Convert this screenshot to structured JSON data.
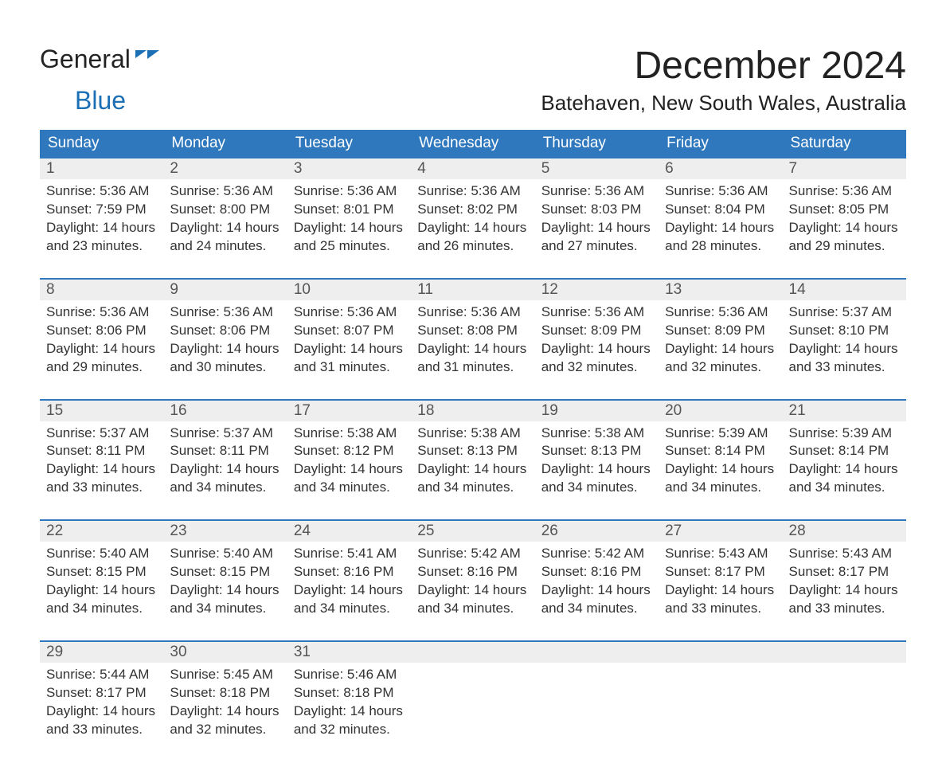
{
  "brand": {
    "word1": "General",
    "word2": "Blue"
  },
  "title": "December 2024",
  "location": "Batehaven, New South Wales, Australia",
  "colors": {
    "header_bg": "#2f78bd",
    "header_text": "#ffffff",
    "daynum_bg": "#eeeeee",
    "text": "#333333",
    "accent": "#1a6fb5",
    "page_bg": "#ffffff"
  },
  "dow": [
    "Sunday",
    "Monday",
    "Tuesday",
    "Wednesday",
    "Thursday",
    "Friday",
    "Saturday"
  ],
  "weeks": [
    [
      {
        "n": "1",
        "sr": "5:36 AM",
        "ss": "7:59 PM",
        "dl": "14 hours and 23 minutes."
      },
      {
        "n": "2",
        "sr": "5:36 AM",
        "ss": "8:00 PM",
        "dl": "14 hours and 24 minutes."
      },
      {
        "n": "3",
        "sr": "5:36 AM",
        "ss": "8:01 PM",
        "dl": "14 hours and 25 minutes."
      },
      {
        "n": "4",
        "sr": "5:36 AM",
        "ss": "8:02 PM",
        "dl": "14 hours and 26 minutes."
      },
      {
        "n": "5",
        "sr": "5:36 AM",
        "ss": "8:03 PM",
        "dl": "14 hours and 27 minutes."
      },
      {
        "n": "6",
        "sr": "5:36 AM",
        "ss": "8:04 PM",
        "dl": "14 hours and 28 minutes."
      },
      {
        "n": "7",
        "sr": "5:36 AM",
        "ss": "8:05 PM",
        "dl": "14 hours and 29 minutes."
      }
    ],
    [
      {
        "n": "8",
        "sr": "5:36 AM",
        "ss": "8:06 PM",
        "dl": "14 hours and 29 minutes."
      },
      {
        "n": "9",
        "sr": "5:36 AM",
        "ss": "8:06 PM",
        "dl": "14 hours and 30 minutes."
      },
      {
        "n": "10",
        "sr": "5:36 AM",
        "ss": "8:07 PM",
        "dl": "14 hours and 31 minutes."
      },
      {
        "n": "11",
        "sr": "5:36 AM",
        "ss": "8:08 PM",
        "dl": "14 hours and 31 minutes."
      },
      {
        "n": "12",
        "sr": "5:36 AM",
        "ss": "8:09 PM",
        "dl": "14 hours and 32 minutes."
      },
      {
        "n": "13",
        "sr": "5:36 AM",
        "ss": "8:09 PM",
        "dl": "14 hours and 32 minutes."
      },
      {
        "n": "14",
        "sr": "5:37 AM",
        "ss": "8:10 PM",
        "dl": "14 hours and 33 minutes."
      }
    ],
    [
      {
        "n": "15",
        "sr": "5:37 AM",
        "ss": "8:11 PM",
        "dl": "14 hours and 33 minutes."
      },
      {
        "n": "16",
        "sr": "5:37 AM",
        "ss": "8:11 PM",
        "dl": "14 hours and 34 minutes."
      },
      {
        "n": "17",
        "sr": "5:38 AM",
        "ss": "8:12 PM",
        "dl": "14 hours and 34 minutes."
      },
      {
        "n": "18",
        "sr": "5:38 AM",
        "ss": "8:13 PM",
        "dl": "14 hours and 34 minutes."
      },
      {
        "n": "19",
        "sr": "5:38 AM",
        "ss": "8:13 PM",
        "dl": "14 hours and 34 minutes."
      },
      {
        "n": "20",
        "sr": "5:39 AM",
        "ss": "8:14 PM",
        "dl": "14 hours and 34 minutes."
      },
      {
        "n": "21",
        "sr": "5:39 AM",
        "ss": "8:14 PM",
        "dl": "14 hours and 34 minutes."
      }
    ],
    [
      {
        "n": "22",
        "sr": "5:40 AM",
        "ss": "8:15 PM",
        "dl": "14 hours and 34 minutes."
      },
      {
        "n": "23",
        "sr": "5:40 AM",
        "ss": "8:15 PM",
        "dl": "14 hours and 34 minutes."
      },
      {
        "n": "24",
        "sr": "5:41 AM",
        "ss": "8:16 PM",
        "dl": "14 hours and 34 minutes."
      },
      {
        "n": "25",
        "sr": "5:42 AM",
        "ss": "8:16 PM",
        "dl": "14 hours and 34 minutes."
      },
      {
        "n": "26",
        "sr": "5:42 AM",
        "ss": "8:16 PM",
        "dl": "14 hours and 34 minutes."
      },
      {
        "n": "27",
        "sr": "5:43 AM",
        "ss": "8:17 PM",
        "dl": "14 hours and 33 minutes."
      },
      {
        "n": "28",
        "sr": "5:43 AM",
        "ss": "8:17 PM",
        "dl": "14 hours and 33 minutes."
      }
    ],
    [
      {
        "n": "29",
        "sr": "5:44 AM",
        "ss": "8:17 PM",
        "dl": "14 hours and 33 minutes."
      },
      {
        "n": "30",
        "sr": "5:45 AM",
        "ss": "8:18 PM",
        "dl": "14 hours and 32 minutes."
      },
      {
        "n": "31",
        "sr": "5:46 AM",
        "ss": "8:18 PM",
        "dl": "14 hours and 32 minutes."
      },
      null,
      null,
      null,
      null
    ]
  ],
  "labels": {
    "sunrise": "Sunrise:",
    "sunset": "Sunset:",
    "daylight": "Daylight:"
  }
}
